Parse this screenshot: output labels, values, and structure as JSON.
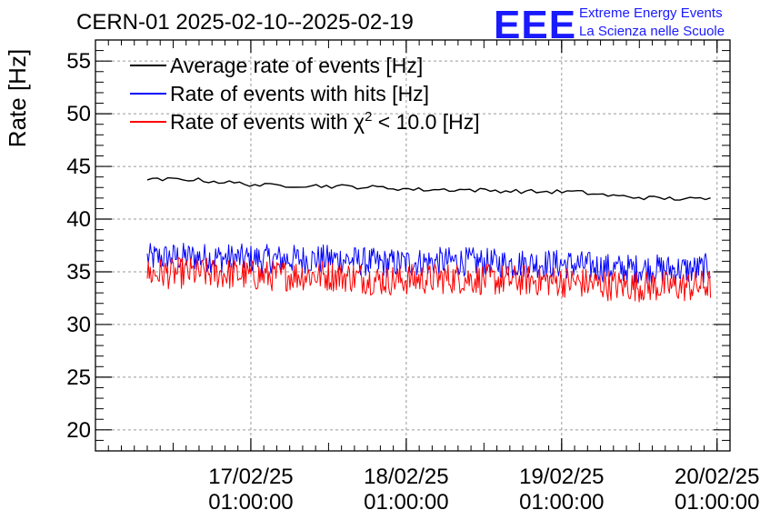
{
  "header": {
    "title": "CERN-01 2025-02-10--2025-02-19",
    "logo_text": "EEE",
    "logo_line1": "Extreme Energy Events",
    "logo_line2": "La Scienza nelle Scuole"
  },
  "chart_data": {
    "type": "line",
    "title": "CERN-01 2025-02-10--2025-02-19",
    "xlabel": "",
    "ylabel": "Rate [Hz]",
    "ylim": [
      18,
      57
    ],
    "xlim": [
      "2025-02-16 01:00:00",
      "2025-02-20 03:00:00"
    ],
    "grid": true,
    "legend_position": "top-left",
    "y_ticks": [
      20,
      25,
      30,
      35,
      40,
      45,
      50,
      55
    ],
    "x_ticks": [
      {
        "x": "2025-02-17 01:00:00",
        "date": "17/02/25",
        "time": "01:00:00"
      },
      {
        "x": "2025-02-18 01:00:00",
        "date": "18/02/25",
        "time": "01:00:00"
      },
      {
        "x": "2025-02-19 01:00:00",
        "date": "19/02/25",
        "time": "01:00:00"
      },
      {
        "x": "2025-02-20 01:00:00",
        "date": "20/02/25",
        "time": "01:00:00"
      }
    ],
    "legend": [
      {
        "label": "Average rate of events [Hz]",
        "color": "#000000"
      },
      {
        "label": "Rate of events with hits [Hz]",
        "color": "#0000ff"
      },
      {
        "label_pre": "Rate of events with ",
        "label_sym": "χ",
        "label_sup": "2",
        "label_post": " < 10.0 [Hz]",
        "color": "#ff0000"
      }
    ],
    "series": [
      {
        "name": "Average rate of events [Hz]",
        "color": "#000000",
        "x": [
          "2025-02-16 09:00",
          "2025-02-16 15:00",
          "2025-02-16 21:00",
          "2025-02-17 03:00",
          "2025-02-17 09:00",
          "2025-02-17 15:00",
          "2025-02-17 21:00",
          "2025-02-18 03:00",
          "2025-02-18 09:00",
          "2025-02-18 15:00",
          "2025-02-18 21:00",
          "2025-02-19 03:00",
          "2025-02-19 09:00",
          "2025-02-19 15:00",
          "2025-02-19 21:00",
          "2025-02-20 00:00"
        ],
        "y": [
          43.7,
          43.8,
          43.5,
          43.2,
          43.2,
          43.1,
          43.0,
          42.8,
          42.8,
          42.7,
          42.6,
          42.6,
          42.2,
          42.0,
          41.9,
          41.9
        ]
      },
      {
        "name": "Rate of events with hits [Hz]",
        "color": "#0000ff",
        "x": [
          "2025-02-16 09:00",
          "2025-02-16 15:00",
          "2025-02-16 21:00",
          "2025-02-17 03:00",
          "2025-02-17 09:00",
          "2025-02-17 15:00",
          "2025-02-17 21:00",
          "2025-02-18 03:00",
          "2025-02-18 09:00",
          "2025-02-18 15:00",
          "2025-02-18 21:00",
          "2025-02-19 03:00",
          "2025-02-19 09:00",
          "2025-02-19 15:00",
          "2025-02-19 21:00",
          "2025-02-20 00:00"
        ],
        "y": [
          36.3,
          36.4,
          36.3,
          36.2,
          36.2,
          36.2,
          35.8,
          35.9,
          36.0,
          35.8,
          35.8,
          35.7,
          35.3,
          35.3,
          35.2,
          35.4
        ],
        "spread": 1.4
      },
      {
        "name": "Rate of events with χ² < 10.0 [Hz]",
        "color": "#ff0000",
        "x": [
          "2025-02-16 09:00",
          "2025-02-16 15:00",
          "2025-02-16 21:00",
          "2025-02-17 03:00",
          "2025-02-17 09:00",
          "2025-02-17 15:00",
          "2025-02-17 21:00",
          "2025-02-18 03:00",
          "2025-02-18 09:00",
          "2025-02-18 15:00",
          "2025-02-18 21:00",
          "2025-02-19 03:00",
          "2025-02-19 09:00",
          "2025-02-19 15:00",
          "2025-02-19 21:00",
          "2025-02-20 00:00"
        ],
        "y": [
          34.8,
          34.9,
          34.8,
          34.6,
          34.7,
          34.6,
          34.2,
          34.3,
          34.4,
          34.2,
          34.2,
          34.0,
          33.7,
          33.6,
          33.6,
          33.8
        ],
        "spread": 1.5
      }
    ]
  }
}
